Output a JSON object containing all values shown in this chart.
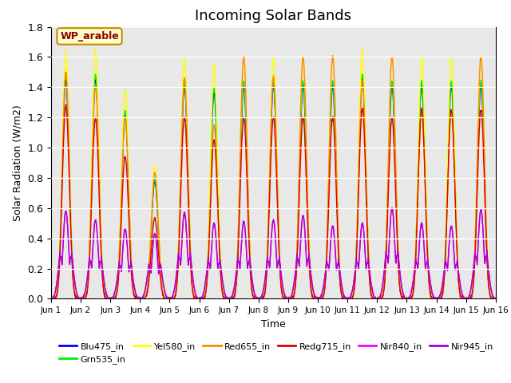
{
  "title": "Incoming Solar Bands",
  "xlabel": "Time",
  "ylabel": "Solar Radiation (W/m2)",
  "annotation": "WP_arable",
  "ylim": [
    0,
    1.8
  ],
  "xlim": [
    0,
    15
  ],
  "bg_color": "#e8e8e8",
  "series_order": [
    "Blu475_in",
    "Grn535_in",
    "Yel580_in",
    "Red655_in",
    "Redg715_in",
    "Nir840_in",
    "Nir945_in"
  ],
  "series": {
    "Blu475_in": {
      "color": "#0000ff"
    },
    "Grn535_in": {
      "color": "#00ee00"
    },
    "Yel580_in": {
      "color": "#ffff00"
    },
    "Red655_in": {
      "color": "#ff8800"
    },
    "Redg715_in": {
      "color": "#dd0000"
    },
    "Nir840_in": {
      "color": "#ff00ff"
    },
    "Nir945_in": {
      "color": "#aa00cc"
    }
  },
  "peaks_yel": [
    1.64,
    1.65,
    1.38,
    0.88,
    1.6,
    1.55,
    1.6,
    1.6,
    1.6,
    1.6,
    1.65,
    1.6,
    1.6,
    1.6,
    1.6
  ],
  "peaks_red": [
    1.5,
    1.4,
    1.2,
    0.83,
    1.46,
    1.15,
    1.6,
    1.47,
    1.6,
    1.6,
    1.45,
    1.6,
    1.25,
    1.25,
    1.6
  ],
  "peaks_redg": [
    1.28,
    1.19,
    0.94,
    0.53,
    1.2,
    1.05,
    1.2,
    1.2,
    1.2,
    1.2,
    1.26,
    1.2,
    1.25,
    1.25,
    1.25
  ],
  "peaks_nir840": [
    0.58,
    0.52,
    0.46,
    0.43,
    0.57,
    0.5,
    0.51,
    0.52,
    0.55,
    0.48,
    0.5,
    0.6,
    0.5,
    0.48,
    0.59
  ],
  "peaks_nir945": [
    0.58,
    0.52,
    0.46,
    0.43,
    0.57,
    0.5,
    0.51,
    0.52,
    0.55,
    0.48,
    0.5,
    0.6,
    0.5,
    0.48,
    0.59
  ],
  "tick_labels": [
    "Jun 1",
    "Jun 2",
    "Jun 3",
    "Jun 4",
    "Jun 5",
    "Jun 6",
    "Jun 7",
    "Jun 8",
    "Jun 9",
    "Jun 10",
    "Jun 11",
    "Jun 12",
    "Jun 13",
    "Jun 14",
    "Jun 15",
    "Jun 16"
  ],
  "legend_ncol": 6,
  "lw": 1.0
}
